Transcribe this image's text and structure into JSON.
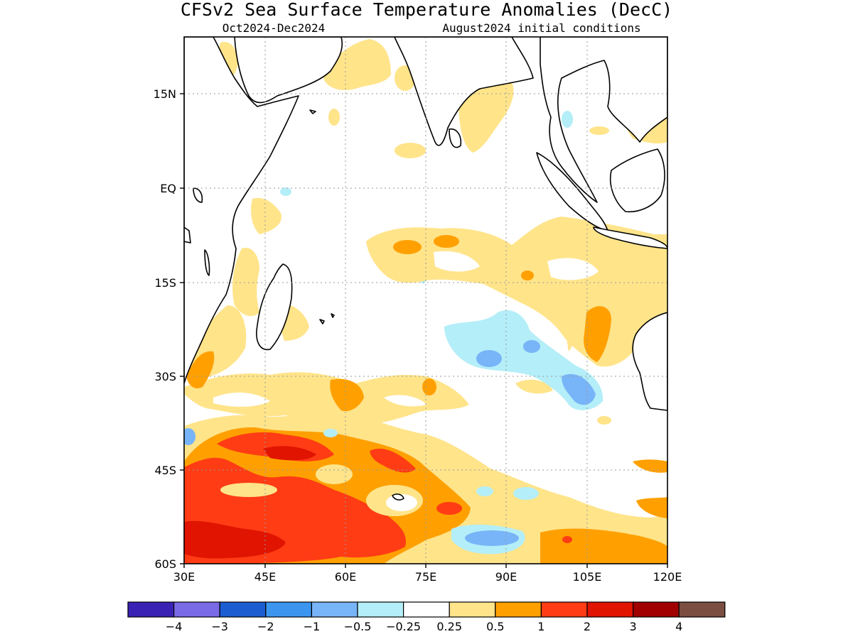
{
  "title": "CFSv2 Sea Surface Temperature Anomalies (DecC)",
  "subtitle_left": "Oct2024-Dec2024",
  "subtitle_right": "August2024 initial conditions",
  "x_ticks": [
    "30E",
    "45E",
    "60E",
    "75E",
    "90E",
    "105E",
    "120E"
  ],
  "y_ticks": [
    "15N",
    "EQ",
    "15S",
    "30S",
    "45S",
    "60S"
  ],
  "colorbar": {
    "colors": [
      "#3a22b4",
      "#7a6ae6",
      "#1c5ed2",
      "#3c96f0",
      "#78b4f8",
      "#b4eef8",
      "#ffffff",
      "#ffe48a",
      "#ffa000",
      "#ff3c14",
      "#e01400",
      "#a00000",
      "#7a4e40"
    ],
    "labels": [
      "-4",
      "-3",
      "-2",
      "-1",
      "-0.5",
      "-0.25",
      "0.25",
      "0.5",
      "1",
      "2",
      "3",
      "4"
    ]
  }
}
